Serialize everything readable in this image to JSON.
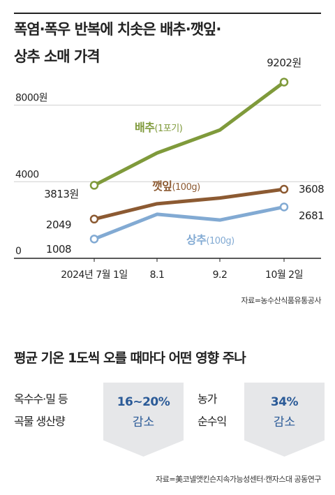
{
  "title": {
    "line1": "폭염·폭우 반복에 치솟은 배추·깻잎·",
    "line2": "상추 소매 가격"
  },
  "chart_data": {
    "type": "line",
    "title": "폭염·폭우 반복에 치솟은 배추·깻잎·상추 소매 가격",
    "categories": [
      "2024년 7월 1일",
      "8.1",
      "9.2",
      "10월 2일"
    ],
    "y_ticks": [
      "8000원",
      "4000",
      "0"
    ],
    "ylim": [
      0,
      10500
    ],
    "grid": true,
    "series": [
      {
        "name": "배추",
        "unit": "(1포기)",
        "color": "#7f9a3b",
        "values": [
          3813,
          5500,
          6700,
          9202
        ],
        "start_label": "3813원",
        "end_label": "9202원"
      },
      {
        "name": "깻잎",
        "unit": "(100g)",
        "color": "#8c5a32",
        "values": [
          2049,
          2850,
          3150,
          3608
        ],
        "start_label": "2049",
        "end_label": "3608"
      },
      {
        "name": "상추",
        "unit": "(100g)",
        "color": "#82aad3",
        "values": [
          1008,
          2300,
          2000,
          2681
        ],
        "start_label": "1008",
        "end_label": "2681"
      }
    ]
  },
  "source1": "자료=농수산식품유통공사",
  "section_title": "평균 기온 1도씩 오를 때마다 어떤 영향 주나",
  "impacts": [
    {
      "label_line1": "옥수수·밀 등",
      "label_line2": "곡물 생산량",
      "value": "16~20%",
      "direction": "감소"
    },
    {
      "label_line1": "농가",
      "label_line2": "순수익",
      "value": "34%",
      "direction": "감소"
    }
  ],
  "source2": "자료=美코넬앳킨슨지속가능성센터·캔자스대 공동연구",
  "colors": {
    "accent_blue": "#2a5a97",
    "box_bg": "#e6e7e9"
  }
}
